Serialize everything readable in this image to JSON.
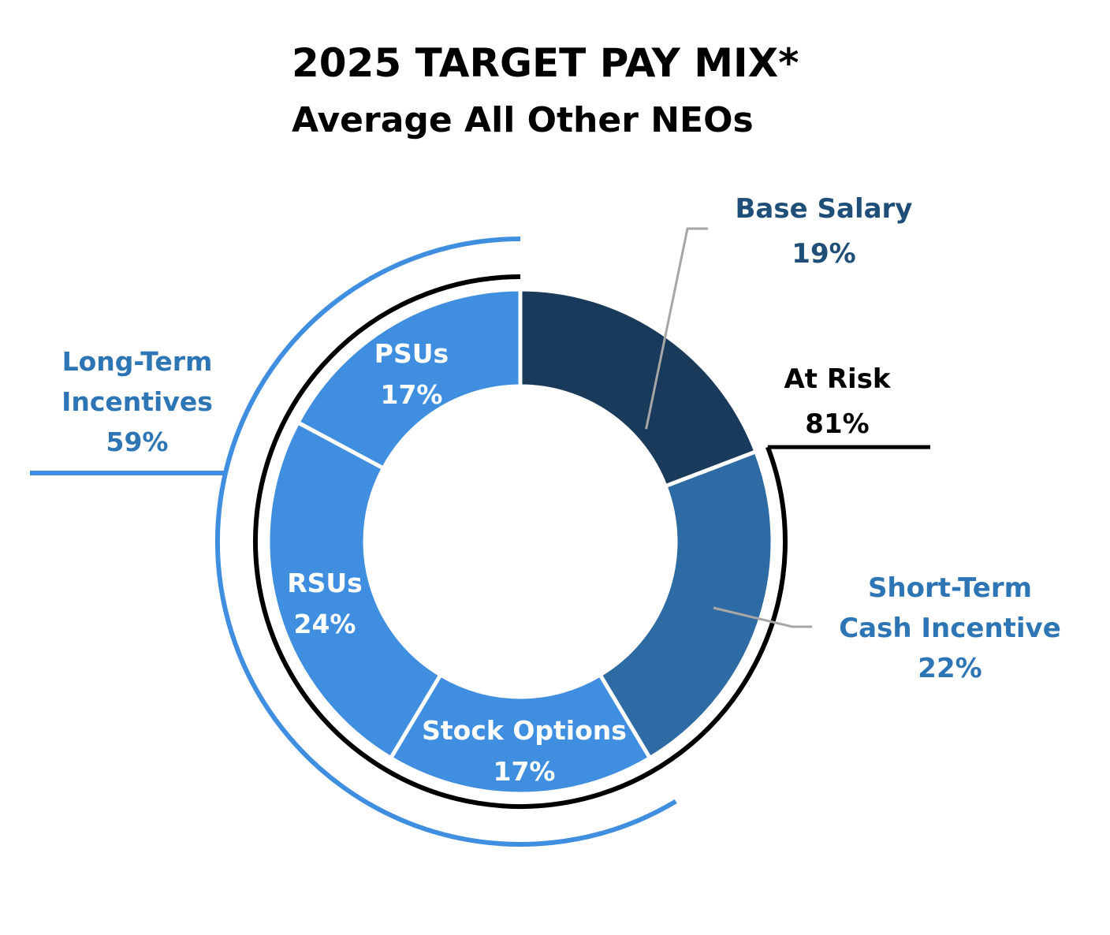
{
  "chart_data": {
    "type": "pie",
    "title": "2025 TARGET PAY MIX*",
    "subtitle": "Average All Other NEOs",
    "slices": [
      {
        "label": "Base Salary",
        "value": 19,
        "value_label": "19%",
        "color": "#1a3a5c",
        "label_placement": "outside"
      },
      {
        "label": "Short-Term Cash Incentive",
        "label_lines": [
          "Short-Term",
          "Cash Incentive"
        ],
        "value": 22,
        "value_label": "22%",
        "color": "#2e6aa3",
        "label_placement": "outside"
      },
      {
        "label": "Stock Options",
        "value": 17,
        "value_label": "17%",
        "color": "#3f8ee0",
        "label_placement": "inside"
      },
      {
        "label": "RSUs",
        "value": 24,
        "value_label": "24%",
        "color": "#3f8ee0",
        "label_placement": "inside"
      },
      {
        "label": "PSUs",
        "value": 17,
        "value_label": "17%",
        "color": "#3f8ee0",
        "label_placement": "inside"
      }
    ],
    "groups": [
      {
        "label": "At Risk",
        "value_label": "81%",
        "color": "#000000"
      },
      {
        "label_lines": [
          "Long-Term",
          "Incentives"
        ],
        "value_label": "59%",
        "color": "#3f8ee0"
      }
    ],
    "outside_label_colors": {
      "base": "#1f4e79",
      "short_term": "#2e75b6"
    }
  }
}
